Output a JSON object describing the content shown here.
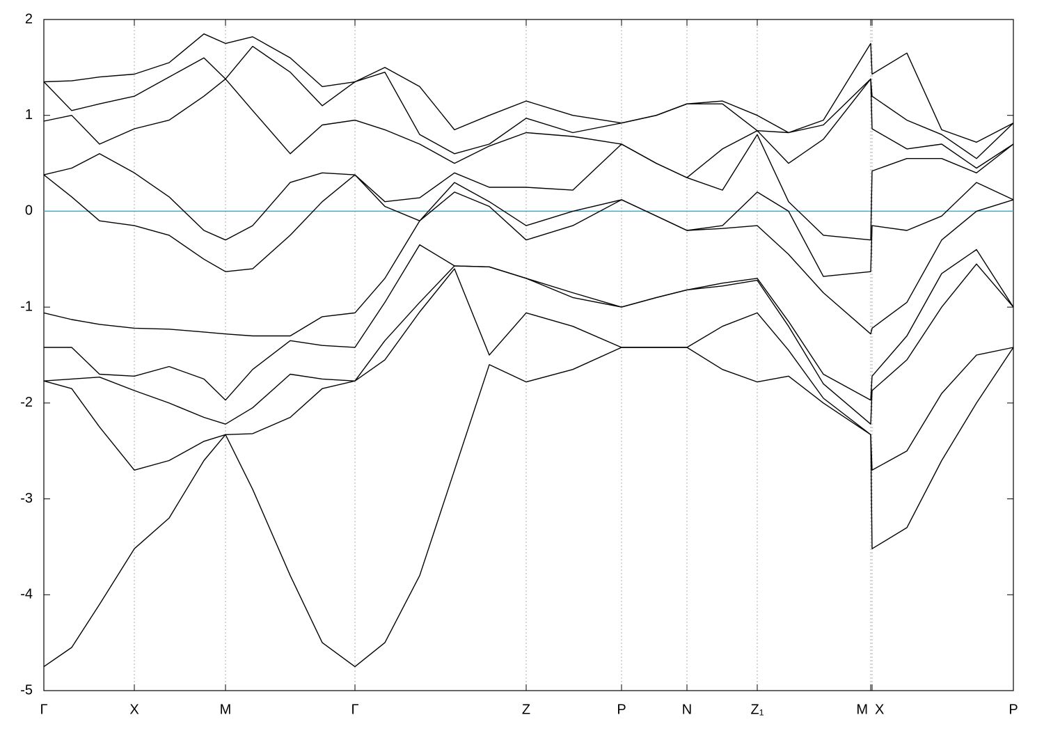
{
  "chart_data": {
    "type": "line",
    "x": [
      0,
      40,
      80,
      130,
      180,
      230,
      261,
      300,
      354,
      400,
      447,
      490,
      540,
      590,
      640,
      693,
      760,
      830,
      880,
      924,
      975,
      1025,
      1070,
      1120,
      1188,
      1190,
      1240,
      1290,
      1340,
      1393
    ],
    "line_color": "#000000",
    "series": [
      {
        "values": [
          -4.75,
          -4.55,
          -4.1,
          -3.52,
          -3.2,
          -2.6,
          -2.33,
          -2.9,
          -3.8,
          -4.5,
          -4.75,
          -4.5,
          -3.8,
          -2.7,
          -1.6,
          -1.78,
          -1.65,
          -1.42,
          -1.42,
          -1.42,
          -1.65,
          -1.78,
          -1.72,
          -2.0,
          -2.33,
          -3.52,
          -3.3,
          -2.6,
          -2.0,
          -1.42
        ]
      },
      {
        "values": [
          -1.77,
          -1.85,
          -2.25,
          -2.7,
          -2.6,
          -2.4,
          -2.33,
          -2.32,
          -2.15,
          -1.85,
          -1.77,
          -1.55,
          -1.05,
          -0.6,
          -1.5,
          -1.06,
          -1.2,
          -1.42,
          -1.42,
          -1.42,
          -1.2,
          -1.06,
          -1.45,
          -1.95,
          -2.33,
          -2.7,
          -2.5,
          -1.9,
          -1.5,
          -1.42
        ]
      },
      {
        "values": [
          -1.77,
          -1.75,
          -1.73,
          -1.87,
          -2.0,
          -2.15,
          -2.22,
          -2.05,
          -1.7,
          -1.75,
          -1.77,
          -1.35,
          -0.95,
          -0.57,
          -0.58,
          -0.7,
          -0.9,
          -1.0,
          -0.9,
          -0.82,
          -0.78,
          -0.72,
          -1.2,
          -1.8,
          -2.22,
          -1.87,
          -1.55,
          -1.0,
          -0.55,
          -1.0
        ]
      },
      {
        "values": [
          -1.42,
          -1.42,
          -1.7,
          -1.72,
          -1.62,
          -1.75,
          -1.97,
          -1.65,
          -1.35,
          -1.4,
          -1.42,
          -0.95,
          -0.35,
          -0.57,
          -0.58,
          -0.7,
          -0.85,
          -1.0,
          -0.9,
          -0.82,
          -0.75,
          -0.7,
          -1.15,
          -1.7,
          -1.97,
          -1.72,
          -1.3,
          -0.65,
          -0.4,
          -1.0
        ]
      },
      {
        "values": [
          -1.06,
          -1.13,
          -1.18,
          -1.22,
          -1.23,
          -1.26,
          -1.28,
          -1.3,
          -1.3,
          -1.1,
          -1.06,
          -0.7,
          -0.1,
          0.2,
          0.05,
          -0.3,
          -0.15,
          0.12,
          -0.05,
          -0.2,
          -0.18,
          -0.15,
          -0.45,
          -0.85,
          -1.28,
          -1.22,
          -0.95,
          -0.3,
          0.0,
          0.12
        ]
      },
      {
        "values": [
          0.38,
          0.15,
          -0.1,
          -0.15,
          -0.25,
          -0.5,
          -0.63,
          -0.6,
          -0.25,
          0.1,
          0.38,
          0.05,
          -0.1,
          0.3,
          0.1,
          -0.15,
          0.0,
          0.12,
          -0.05,
          -0.2,
          -0.15,
          0.2,
          0.0,
          -0.68,
          -0.63,
          -0.15,
          -0.2,
          -0.05,
          0.3,
          0.12
        ]
      },
      {
        "values": [
          0.38,
          0.45,
          0.6,
          0.4,
          0.15,
          -0.2,
          -0.3,
          -0.15,
          0.3,
          0.4,
          0.38,
          0.1,
          0.14,
          0.4,
          0.25,
          0.25,
          0.22,
          0.7,
          0.5,
          0.35,
          0.22,
          0.8,
          0.1,
          -0.25,
          -0.3,
          0.42,
          0.55,
          0.55,
          0.4,
          0.7
        ]
      },
      {
        "values": [
          0.94,
          1.0,
          0.7,
          0.86,
          0.95,
          1.2,
          1.38,
          1.05,
          0.6,
          0.9,
          0.95,
          0.85,
          0.7,
          0.5,
          0.68,
          0.82,
          0.78,
          0.7,
          0.5,
          0.35,
          0.65,
          0.84,
          0.5,
          0.75,
          1.38,
          0.86,
          0.65,
          0.7,
          0.45,
          0.7
        ]
      },
      {
        "values": [
          1.35,
          1.05,
          1.12,
          1.2,
          1.4,
          1.6,
          1.38,
          1.72,
          1.45,
          1.1,
          1.35,
          1.45,
          0.8,
          0.6,
          0.7,
          0.97,
          0.82,
          0.92,
          1.0,
          1.12,
          1.12,
          0.84,
          0.82,
          0.9,
          1.38,
          1.2,
          0.95,
          0.8,
          0.55,
          0.92
        ]
      },
      {
        "values": [
          1.35,
          1.36,
          1.4,
          1.43,
          1.55,
          1.85,
          1.75,
          1.82,
          1.6,
          1.3,
          1.35,
          1.5,
          1.3,
          0.85,
          1.0,
          1.15,
          1.0,
          0.92,
          1.0,
          1.12,
          1.15,
          1.0,
          0.82,
          0.95,
          1.75,
          1.43,
          1.65,
          0.85,
          0.72,
          0.92
        ]
      }
    ],
    "xlim": [
      0,
      1393
    ],
    "ylim": [
      -5,
      2
    ],
    "xticks": [
      {
        "value": 0,
        "label": "Γ"
      },
      {
        "value": 130,
        "label": "X"
      },
      {
        "value": 261,
        "label": "M"
      },
      {
        "value": 447,
        "label": "Γ"
      },
      {
        "value": 693,
        "label": "Z"
      },
      {
        "value": 830,
        "label": "P"
      },
      {
        "value": 924,
        "label": "N"
      },
      {
        "value": 1025,
        "label": "Z₁"
      },
      {
        "value": 1188,
        "label": "M"
      },
      {
        "value": 1190,
        "label": "X"
      },
      {
        "value": 1393,
        "label": "P"
      }
    ],
    "yticks": [
      -5,
      -4,
      -3,
      -2,
      -1,
      0,
      1,
      2
    ],
    "x_grid": true,
    "hlines": [
      {
        "value": 0,
        "color": "#4aa8c4"
      }
    ]
  }
}
